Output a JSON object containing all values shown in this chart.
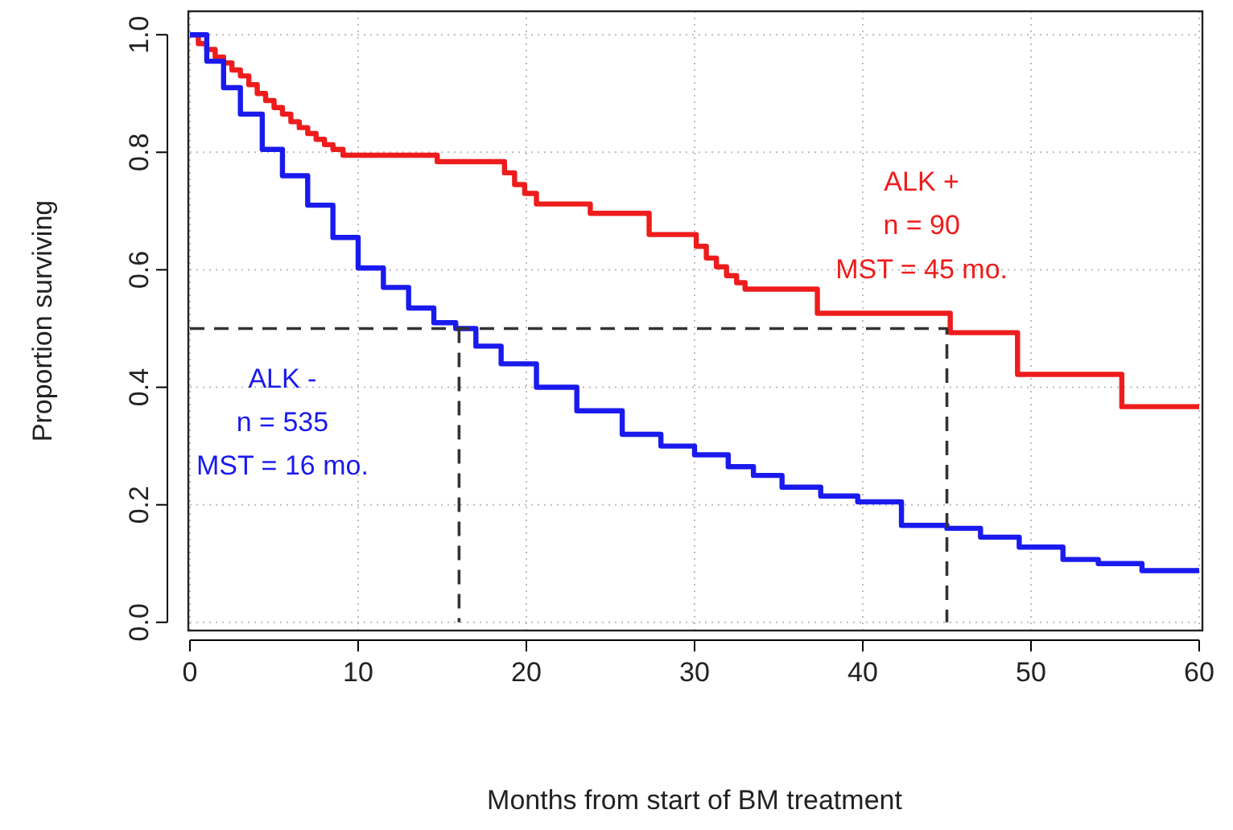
{
  "chart_data": {
    "type": "step",
    "xlabel": "Months from start of BM treatment",
    "ylabel": "Proportion surviving",
    "xlim": [
      0,
      60
    ],
    "xticks": [
      0,
      10,
      20,
      30,
      40,
      50,
      60
    ],
    "ylim": [
      -0.014,
      1.04
    ],
    "yticks": [
      {
        "value": 0,
        "label": "0.0"
      },
      {
        "value": 0.2,
        "label": "0.2"
      },
      {
        "value": 0.4,
        "label": "0.4"
      },
      {
        "value": 0.6,
        "label": "0.6"
      },
      {
        "value": 0.8,
        "label": "0.8"
      },
      {
        "value": 1,
        "label": "1.0"
      }
    ],
    "grid": true,
    "series": [
      {
        "name": "ALK +",
        "color": "#ee1c1c",
        "x": [
          0,
          0.5,
          1,
          1.5,
          2,
          2.5,
          3,
          3.5,
          4,
          4.5,
          5,
          5.5,
          6,
          6.5,
          7,
          7.5,
          8,
          8.5,
          9.1,
          14.7,
          18.7,
          19.3,
          19.9,
          20.6,
          23.8,
          27.3,
          30.1,
          30.7,
          31.3,
          31.9,
          32.5,
          33,
          37.3,
          45.2,
          49.2,
          55.4,
          60
        ],
        "values": [
          1,
          0.985,
          0.975,
          0.962,
          0.952,
          0.94,
          0.93,
          0.915,
          0.9,
          0.888,
          0.876,
          0.865,
          0.852,
          0.842,
          0.832,
          0.822,
          0.813,
          0.805,
          0.795,
          0.784,
          0.765,
          0.745,
          0.73,
          0.712,
          0.696,
          0.66,
          0.64,
          0.62,
          0.605,
          0.59,
          0.578,
          0.567,
          0.526,
          0.493,
          0.422,
          0.367,
          0.367
        ]
      },
      {
        "name": "ALK -",
        "color": "#1a1aee",
        "x": [
          0,
          1,
          2,
          3,
          4.3,
          5.5,
          7,
          8.5,
          10,
          11.5,
          13,
          14.5,
          15.8,
          17,
          18.5,
          20.6,
          23,
          25.7,
          28,
          30,
          32,
          33.5,
          35.2,
          37.5,
          39.7,
          42.3,
          45,
          47,
          49.3,
          51.9,
          54,
          56.6,
          60
        ],
        "values": [
          1,
          0.955,
          0.91,
          0.865,
          0.805,
          0.76,
          0.71,
          0.655,
          0.603,
          0.57,
          0.535,
          0.51,
          0.5,
          0.47,
          0.44,
          0.4,
          0.36,
          0.32,
          0.3,
          0.285,
          0.265,
          0.25,
          0.23,
          0.215,
          0.205,
          0.165,
          0.16,
          0.145,
          0.128,
          0.107,
          0.1,
          0.088,
          0.088
        ]
      },
      {
        "type": "line",
        "color": "#333333",
        "line_style": "dashed",
        "x": [
          0,
          45,
          45
        ],
        "values": [
          0.5,
          0.5,
          0
        ]
      },
      {
        "type": "line",
        "color": "#333333",
        "line_style": "dashed",
        "x": [
          16,
          16
        ],
        "values": [
          0.5,
          0
        ]
      }
    ],
    "annotations": [
      "n = 90",
      "MST = 45 mo.",
      "n = 535",
      "MST = 16 mo."
    ]
  }
}
